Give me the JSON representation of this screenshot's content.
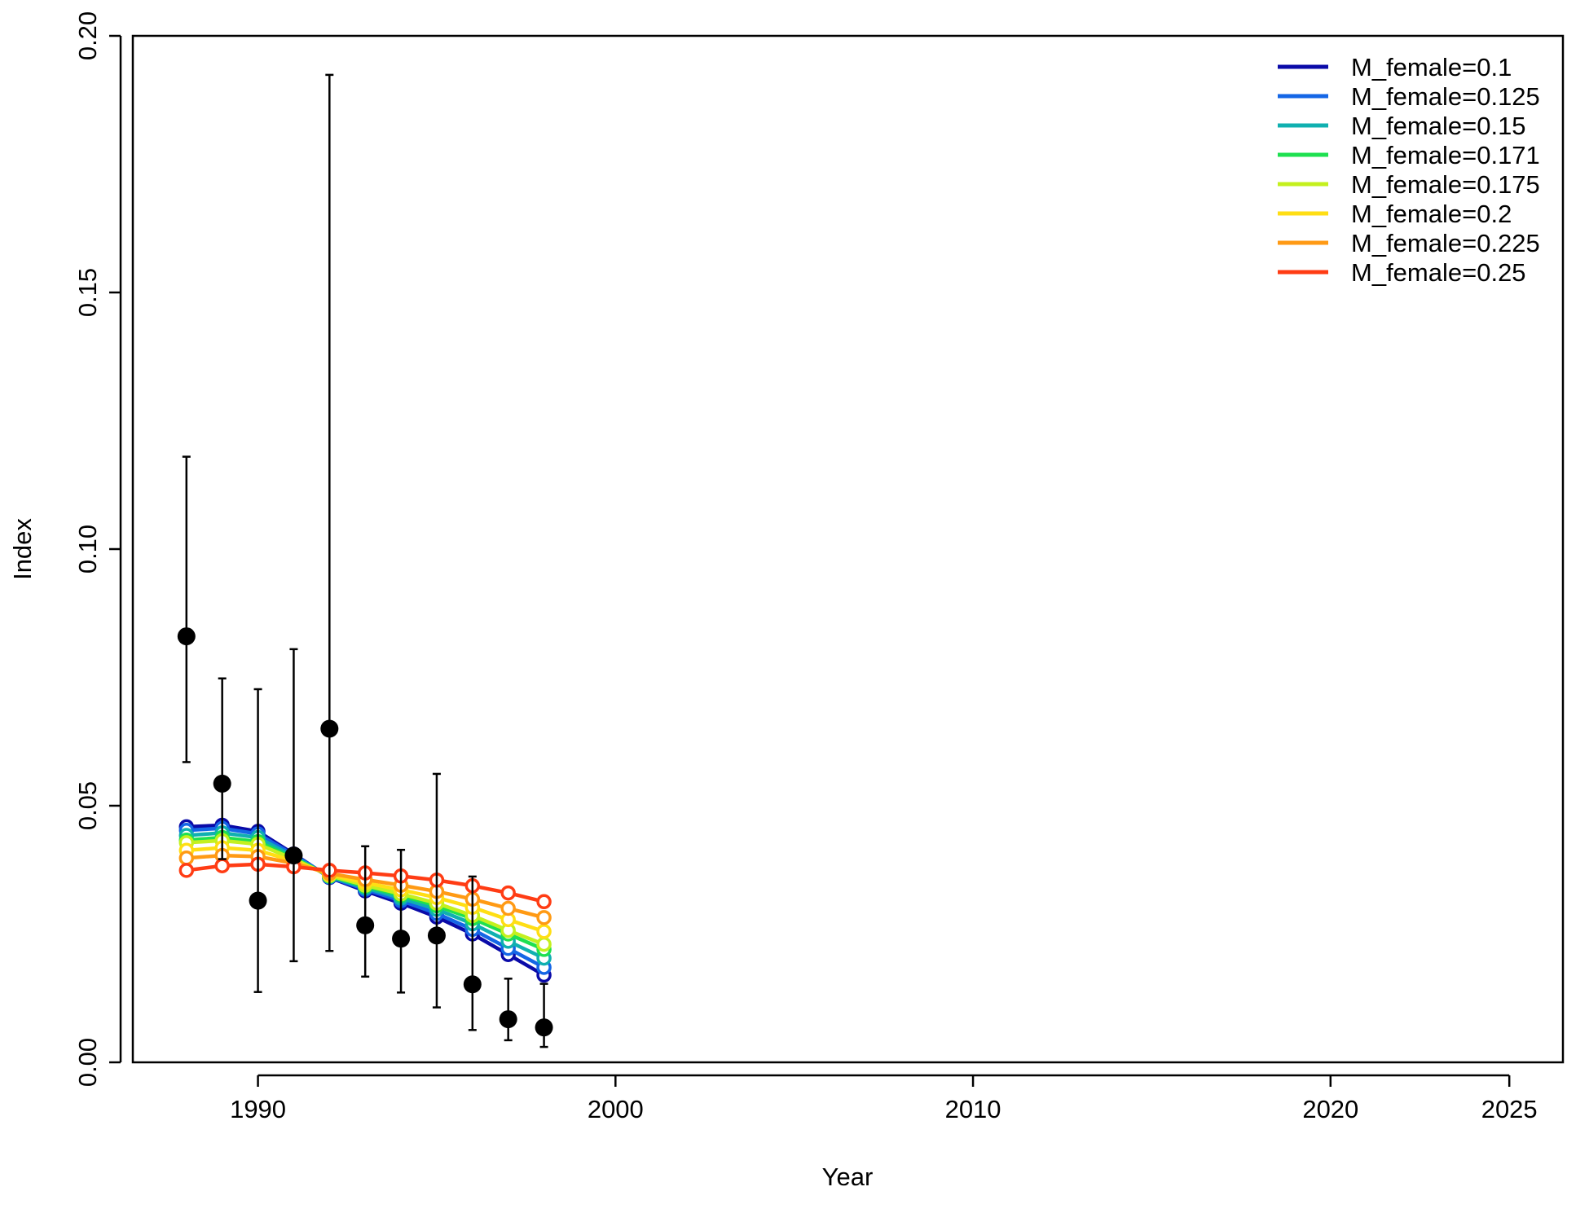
{
  "chart_data": {
    "type": "line",
    "title": "",
    "xlabel": "Year",
    "ylabel": "Index",
    "xlim": [
      1986.5,
      2026.5
    ],
    "ylim": [
      0.0,
      0.2
    ],
    "x_ticks": [
      1990,
      2000,
      2010,
      2020,
      2025
    ],
    "x_tick_labels": [
      "1990",
      "2000",
      "2010",
      "2020",
      "2025"
    ],
    "y_ticks": [
      0.0,
      0.05,
      0.1,
      0.15,
      0.2
    ],
    "y_tick_labels": [
      "0.00",
      "0.05",
      "0.10",
      "0.15",
      "0.20"
    ],
    "grid": false,
    "legend_position": "top-right",
    "observed": {
      "x": [
        1988,
        1989,
        1990,
        1991,
        1992,
        1993,
        1994,
        1995,
        1996,
        1997,
        1998
      ],
      "y": [
        0.083,
        0.0543,
        0.0315,
        0.0403,
        0.065,
        0.0267,
        0.0241,
        0.0247,
        0.0152,
        0.0084,
        0.0068
      ],
      "lower": [
        0.0585,
        0.0396,
        0.0137,
        0.0197,
        0.0217,
        0.0167,
        0.0136,
        0.0107,
        0.0063,
        0.0043,
        0.003
      ],
      "upper": [
        0.118,
        0.0748,
        0.0727,
        0.0805,
        0.1924,
        0.0421,
        0.0414,
        0.0562,
        0.0362,
        0.0163,
        0.0153
      ],
      "color": "#000000"
    },
    "x": [
      1988,
      1989,
      1990,
      1991,
      1992,
      1993,
      1994,
      1995,
      1996,
      1997,
      1998
    ],
    "series": [
      {
        "name": "M_female=0.1",
        "color": "#0a0aa8",
        "values": [
          0.0459,
          0.0462,
          0.045,
          0.0406,
          0.036,
          0.0334,
          0.031,
          0.0283,
          0.025,
          0.021,
          0.017
        ]
      },
      {
        "name": "M_female=0.125",
        "color": "#1466e6",
        "values": [
          0.0452,
          0.0456,
          0.0445,
          0.0404,
          0.0361,
          0.0337,
          0.0315,
          0.029,
          0.0259,
          0.0222,
          0.0185
        ]
      },
      {
        "name": "M_female=0.15",
        "color": "#10b0b0",
        "values": [
          0.0442,
          0.0447,
          0.0438,
          0.0401,
          0.0362,
          0.034,
          0.032,
          0.0298,
          0.027,
          0.0236,
          0.0203
        ]
      },
      {
        "name": "M_female=0.171",
        "color": "#1ee050",
        "values": [
          0.0433,
          0.0438,
          0.043,
          0.0398,
          0.0363,
          0.0343,
          0.0325,
          0.0305,
          0.028,
          0.025,
          0.022
        ]
      },
      {
        "name": "M_female=0.175",
        "color": "#c4f01e",
        "values": [
          0.0428,
          0.0432,
          0.0425,
          0.0396,
          0.0364,
          0.0345,
          0.0328,
          0.031,
          0.0286,
          0.0257,
          0.023
        ]
      },
      {
        "name": "M_female=0.2",
        "color": "#ffde14",
        "values": [
          0.0413,
          0.0418,
          0.0413,
          0.0392,
          0.0366,
          0.035,
          0.0336,
          0.0321,
          0.0302,
          0.0278,
          0.0255
        ]
      },
      {
        "name": "M_female=0.225",
        "color": "#ff9a14",
        "values": [
          0.0398,
          0.0403,
          0.0401,
          0.0388,
          0.0368,
          0.0356,
          0.0345,
          0.0333,
          0.0318,
          0.03,
          0.0282
        ]
      },
      {
        "name": "M_female=0.25",
        "color": "#ff3c14",
        "values": [
          0.0374,
          0.0383,
          0.0386,
          0.0381,
          0.0374,
          0.0369,
          0.0363,
          0.0355,
          0.0344,
          0.033,
          0.0313
        ]
      }
    ]
  }
}
